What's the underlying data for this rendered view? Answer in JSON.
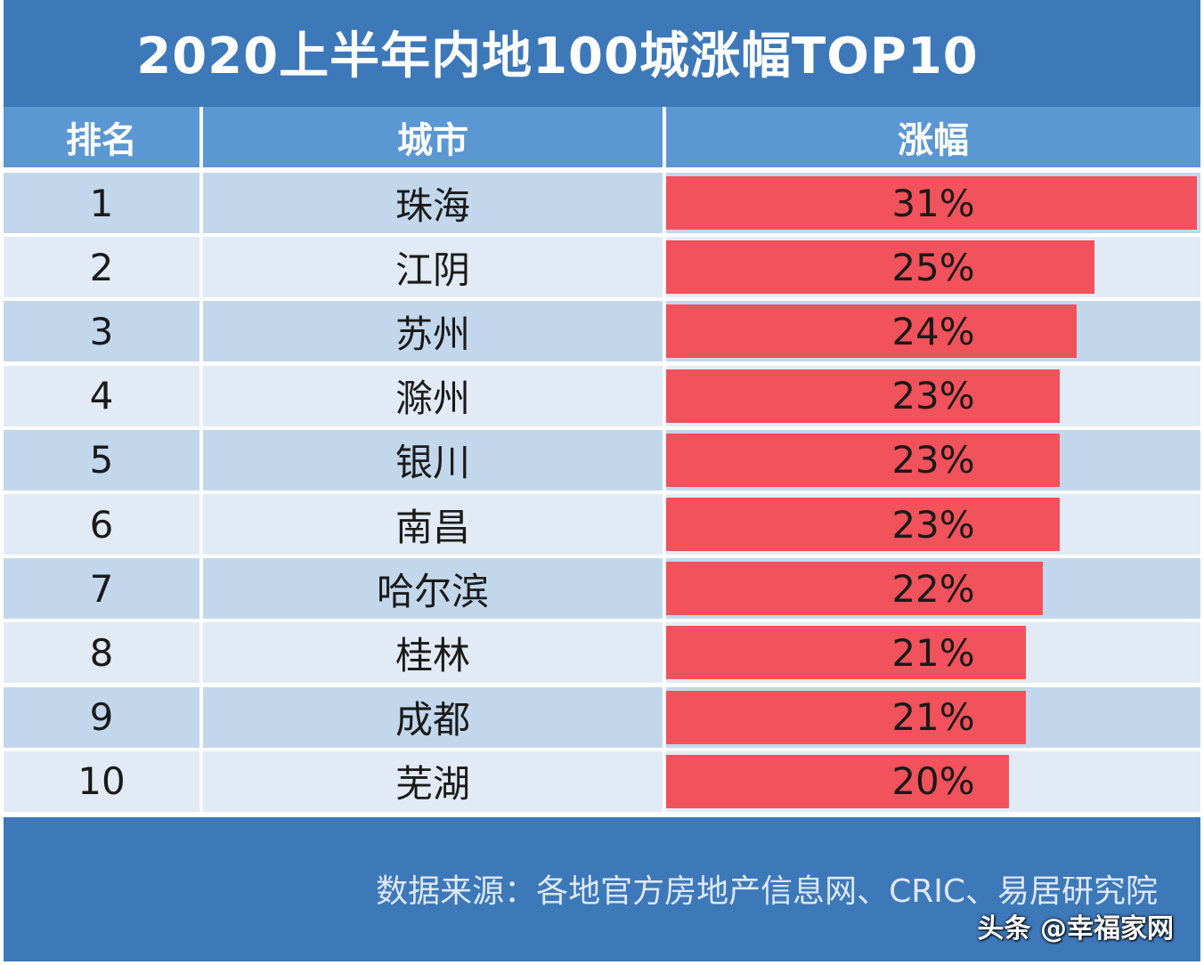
{
  "title": "2020上半年内地100城涨幅TOP10",
  "headers": {
    "rank": "排名",
    "city": "城市",
    "increase": "涨幅"
  },
  "rows": [
    {
      "rank": "1",
      "city": "珠海",
      "pct": "31%"
    },
    {
      "rank": "2",
      "city": "江阴",
      "pct": "25%"
    },
    {
      "rank": "3",
      "city": "苏州",
      "pct": "24%"
    },
    {
      "rank": "4",
      "city": "滁州",
      "pct": "23%"
    },
    {
      "rank": "5",
      "city": "银川",
      "pct": "23%"
    },
    {
      "rank": "6",
      "city": "南昌",
      "pct": "23%"
    },
    {
      "rank": "7",
      "city": "哈尔滨",
      "pct": "22%"
    },
    {
      "rank": "8",
      "city": "桂林",
      "pct": "21%"
    },
    {
      "rank": "9",
      "city": "成都",
      "pct": "21%"
    },
    {
      "rank": "10",
      "city": "芜湖",
      "pct": "20%"
    }
  ],
  "source": "数据来源：各地官方房地产信息网、CRIC、易居研究院",
  "watermark": "头条 @幸福家网",
  "colors": {
    "title_bg": "#3d78b8",
    "header_bg": "#5b97d2",
    "bar": "#f2525b",
    "row_odd": "#c3d7ec",
    "row_even": "#e2ebf5"
  },
  "chart_data": {
    "type": "bar",
    "title": "2020上半年内地100城涨幅TOP10",
    "categories": [
      "珠海",
      "江阴",
      "苏州",
      "滁州",
      "银川",
      "南昌",
      "哈尔滨",
      "桂林",
      "成都",
      "芜湖"
    ],
    "values": [
      31,
      25,
      24,
      23,
      23,
      23,
      22,
      21,
      21,
      20
    ],
    "unit": "%",
    "xlabel": "城市",
    "ylabel": "涨幅",
    "xlim": [
      0,
      31
    ]
  }
}
